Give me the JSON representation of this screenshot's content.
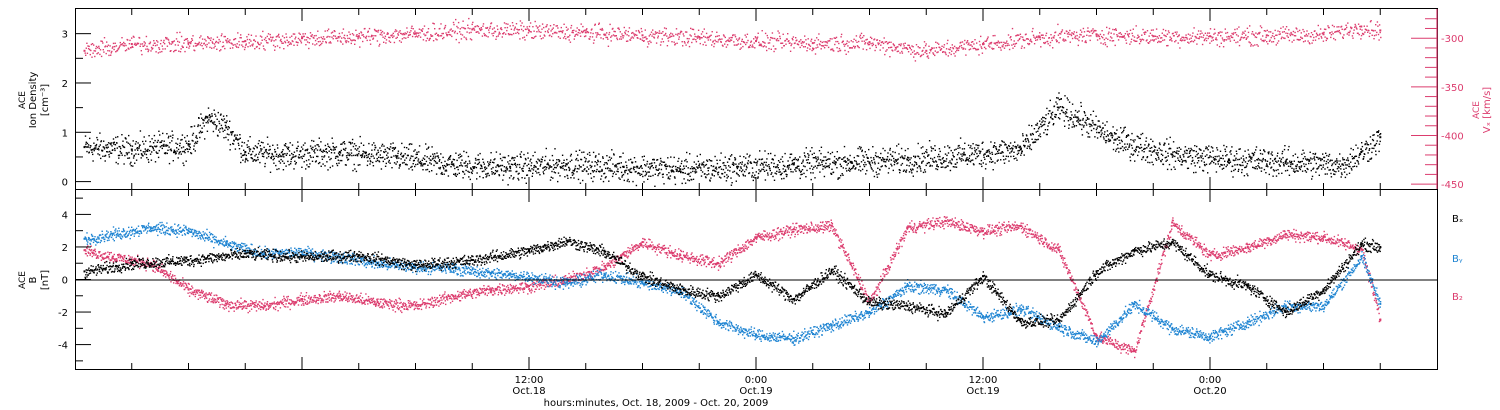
{
  "figure": {
    "x_axis_title": "hours:minutes, Oct. 18, 2009 - Oct. 20, 2009",
    "time_ticks": [
      {
        "time": "12:00",
        "date": "Oct.18"
      },
      {
        "time": "0:00",
        "date": "Oct.19"
      },
      {
        "time": "12:00",
        "date": "Oct.19"
      },
      {
        "time": "0:00",
        "date": "Oct.20"
      }
    ]
  },
  "chart_data": [
    {
      "type": "scatter",
      "panel": "top",
      "xlabel": "hours:minutes, Oct. 18, 2009 - Oct. 20, 2009",
      "xlim": [
        -12,
        60
      ],
      "x_unit": "hours from 0:00 Oct.18, 2009",
      "grid": false,
      "left_axis": {
        "label_lines": [
          "ACE",
          "Ion Density",
          "[cm⁻³]"
        ],
        "ylim": [
          -0.15,
          3.5
        ],
        "ticks": [
          0,
          1,
          2,
          3
        ],
        "color": "#000000"
      },
      "right_axis": {
        "label_lines": [
          "ACE",
          "Vₓ [km/s]"
        ],
        "ylim": [
          -455,
          -270
        ],
        "ticks": [
          -450,
          -400,
          -350,
          -300
        ],
        "color": "#dc3c6e"
      },
      "series": [
        {
          "axis": "left",
          "color": "#000000",
          "x": [
            -11.5,
            -9,
            -6,
            -5,
            -4,
            -3,
            -1,
            2,
            5,
            8,
            11,
            14,
            17,
            20,
            23,
            26,
            29,
            32,
            35,
            38,
            40,
            41,
            43,
            46,
            49,
            52,
            55,
            56,
            57
          ],
          "y": [
            0.7,
            0.65,
            0.75,
            1.3,
            1.1,
            0.6,
            0.55,
            0.6,
            0.5,
            0.35,
            0.3,
            0.35,
            0.3,
            0.25,
            0.3,
            0.35,
            0.4,
            0.45,
            0.55,
            0.65,
            1.5,
            1.3,
            0.85,
            0.55,
            0.45,
            0.4,
            0.35,
            0.6,
            0.9
          ]
        },
        {
          "axis": "right",
          "color": "#dc3c6e",
          "x": [
            -11.5,
            -9,
            -6,
            -3,
            0,
            3,
            6,
            9,
            12,
            15,
            18,
            21,
            24,
            27,
            30,
            33,
            36,
            39,
            42,
            45,
            48,
            51,
            54,
            56,
            57
          ],
          "y": [
            -313,
            -306,
            -305,
            -303,
            -300,
            -298,
            -295,
            -291,
            -292,
            -294,
            -297,
            -299,
            -303,
            -305,
            -304,
            -313,
            -306,
            -299,
            -296,
            -298,
            -298,
            -297,
            -296,
            -288,
            -292
          ]
        }
      ]
    },
    {
      "type": "scatter",
      "panel": "bottom",
      "xlabel": "hours:minutes, Oct. 18, 2009 - Oct. 20, 2009",
      "xlim": [
        -12,
        60
      ],
      "x_unit": "hours from 0:00 Oct.18, 2009",
      "grid": false,
      "zero_line": true,
      "left_axis": {
        "label_lines": [
          "ACE",
          "B",
          "[nT]"
        ],
        "ylim": [
          -5.5,
          5.5
        ],
        "ticks": [
          -4,
          -2,
          0,
          2,
          4
        ]
      },
      "legend_position": "right",
      "series": [
        {
          "name": "Bₓ",
          "color": "#000000",
          "x": [
            -11.5,
            -9,
            -6,
            -3,
            0,
            3,
            6,
            9,
            12,
            14,
            16,
            18,
            20,
            22,
            24,
            26,
            28,
            30,
            32,
            34,
            36,
            38,
            40,
            42,
            44,
            46,
            48,
            50,
            52,
            54,
            56,
            57
          ],
          "y": [
            0.5,
            1.0,
            1.2,
            1.6,
            1.4,
            1.5,
            0.9,
            1.2,
            1.8,
            2.4,
            1.7,
            0.2,
            -0.6,
            -1.0,
            0.3,
            -1.2,
            0.6,
            -1.4,
            -1.6,
            -2.1,
            0.2,
            -2.6,
            -2.5,
            0.5,
            1.8,
            2.3,
            0.3,
            -0.4,
            -2.0,
            -0.6,
            2.2,
            2.0
          ]
        },
        {
          "name": "Bᵧ",
          "color": "#1e84d2",
          "x": [
            -11.5,
            -10,
            -8,
            -6,
            -4,
            -2,
            0,
            2,
            4,
            6,
            8,
            10,
            12,
            14,
            16,
            18,
            20,
            22,
            24,
            26,
            28,
            30,
            32,
            34,
            36,
            38,
            40,
            42,
            44,
            46,
            48,
            50,
            52,
            54,
            56,
            57
          ],
          "y": [
            2.5,
            2.8,
            3.2,
            3.0,
            2.2,
            1.6,
            1.7,
            1.4,
            1.0,
            0.8,
            0.7,
            0.4,
            0.2,
            -0.2,
            0.3,
            -0.2,
            -0.7,
            -2.6,
            -3.4,
            -3.6,
            -2.8,
            -2.0,
            -0.4,
            -0.6,
            -2.3,
            -1.8,
            -2.9,
            -3.8,
            -1.5,
            -3.0,
            -3.5,
            -2.6,
            -1.6,
            -1.6,
            1.4,
            -1.5
          ]
        },
        {
          "name": "B₂",
          "color": "#dc3c6e",
          "x": [
            -11.5,
            -10,
            -8,
            -6,
            -4,
            -2,
            0,
            2,
            4,
            6,
            8,
            10,
            12,
            14,
            16,
            18,
            20,
            22,
            24,
            26,
            28,
            30,
            32,
            34,
            36,
            38,
            40,
            42,
            44,
            46,
            48,
            50,
            52,
            54,
            56,
            57
          ],
          "y": [
            1.8,
            1.4,
            1.0,
            -0.6,
            -1.5,
            -1.6,
            -1.2,
            -1.0,
            -1.4,
            -1.6,
            -1.0,
            -0.6,
            -0.4,
            0.0,
            0.8,
            2.3,
            1.5,
            1.0,
            2.6,
            3.1,
            3.3,
            -1.4,
            3.2,
            3.6,
            3.0,
            3.3,
            1.8,
            -3.5,
            -4.4,
            3.5,
            1.5,
            2.0,
            2.8,
            2.6,
            1.9,
            -2.5
          ]
        }
      ]
    }
  ]
}
